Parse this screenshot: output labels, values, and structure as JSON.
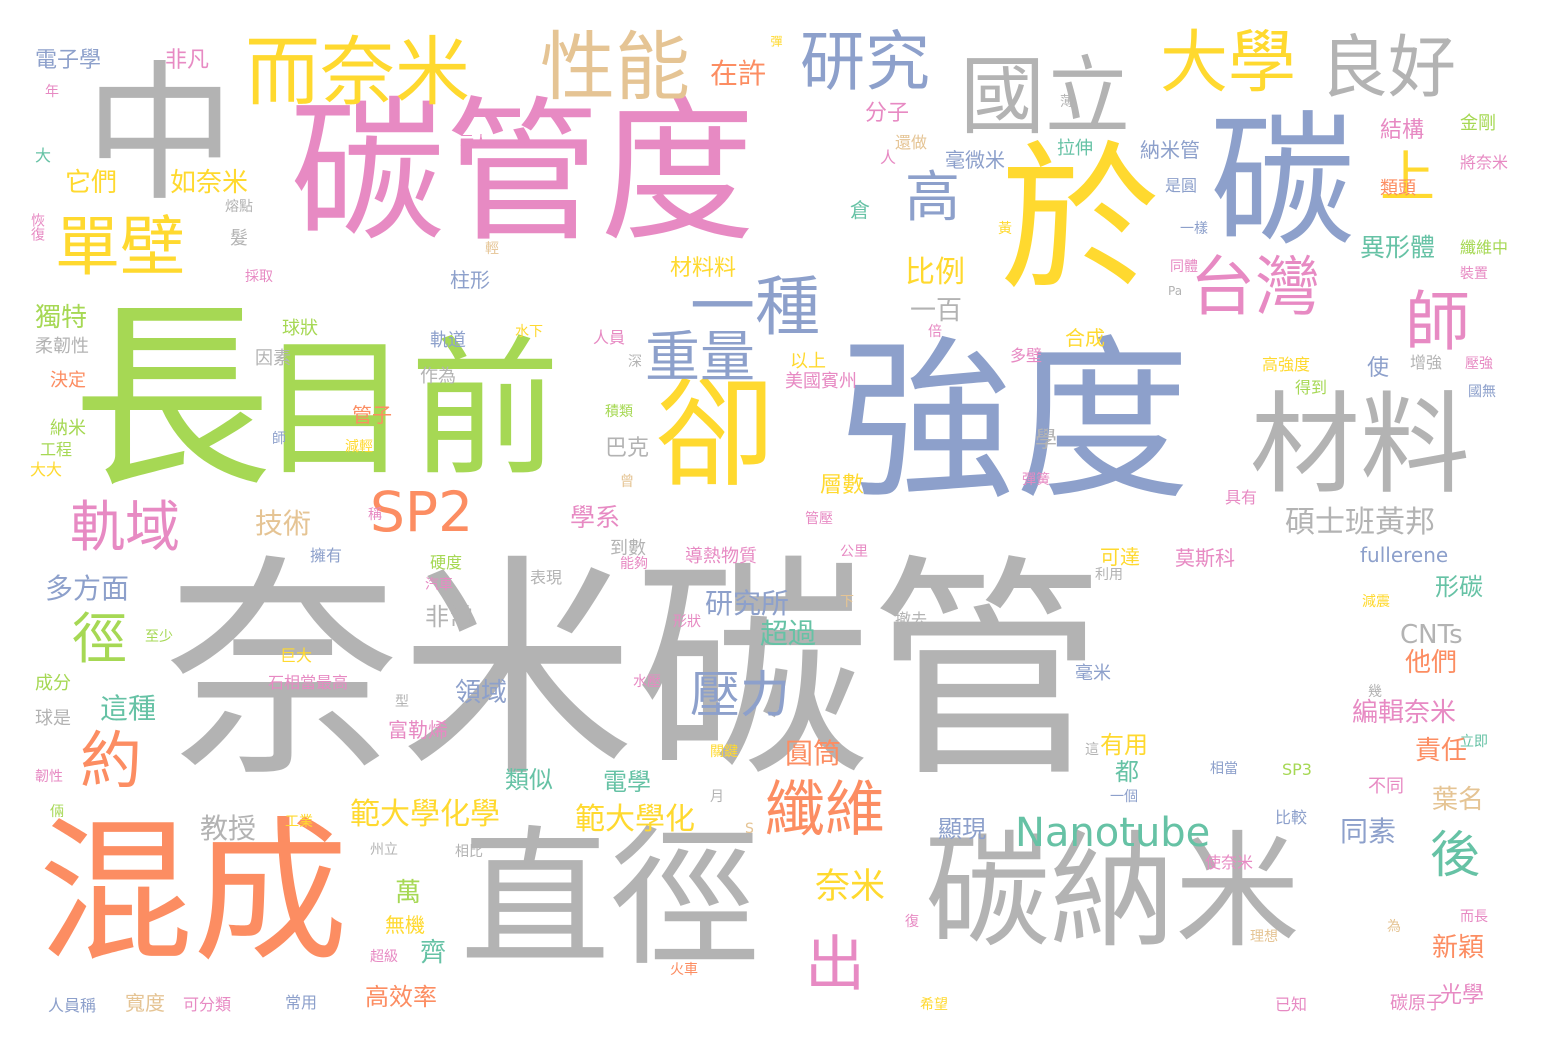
{
  "colors": {
    "gray": "#b3b3b3",
    "green": "#a6d854",
    "pink": "#e78ac3",
    "blue": "#8da0cb",
    "yellow": "#ffd92f",
    "orange": "#fc8d62",
    "teal": "#66c2a5",
    "tan": "#e5c494"
  },
  "words": [
    {
      "text": "奈米碳管",
      "color": "gray"
    },
    {
      "text": "強度",
      "color": "blue"
    },
    {
      "text": "長",
      "color": "green"
    },
    {
      "text": "目前",
      "color": "green"
    },
    {
      "text": "碳管度",
      "color": "pink"
    },
    {
      "text": "於",
      "color": "yellow"
    },
    {
      "text": "碳",
      "color": "blue"
    },
    {
      "text": "中",
      "color": "gray"
    },
    {
      "text": "直徑",
      "color": "gray"
    },
    {
      "text": "碳納米",
      "color": "gray"
    },
    {
      "text": "混成",
      "color": "orange"
    },
    {
      "text": "卻",
      "color": "yellow"
    },
    {
      "text": "材料",
      "color": "gray"
    },
    {
      "text": "國立",
      "color": "gray"
    },
    {
      "text": "而奈米",
      "color": "yellow"
    },
    {
      "text": "性能",
      "color": "tan"
    },
    {
      "text": "大學",
      "color": "yellow"
    },
    {
      "text": "良好",
      "color": "gray"
    },
    {
      "text": "研究",
      "color": "blue"
    },
    {
      "text": "單壁",
      "color": "yellow"
    },
    {
      "text": "一種",
      "color": "blue"
    },
    {
      "text": "台灣",
      "color": "pink"
    },
    {
      "text": "師",
      "color": "pink"
    },
    {
      "text": "高",
      "color": "blue"
    },
    {
      "text": "上",
      "color": "yellow"
    },
    {
      "text": "重量",
      "color": "blue"
    },
    {
      "text": "SP2",
      "color": "orange"
    },
    {
      "text": "軌域",
      "color": "pink"
    },
    {
      "text": "徑",
      "color": "green"
    },
    {
      "text": "約",
      "color": "orange"
    },
    {
      "text": "纖維",
      "color": "orange"
    },
    {
      "text": "出",
      "color": "pink"
    },
    {
      "text": "壓力",
      "color": "blue"
    },
    {
      "text": "Nanotube",
      "color": "teal"
    },
    {
      "text": "後",
      "color": "teal"
    },
    {
      "text": "碩士班黃邦",
      "color": "gray"
    },
    {
      "text": "範大學化學",
      "color": "yellow"
    },
    {
      "text": "範大學化",
      "color": "yellow"
    },
    {
      "text": "奈米",
      "color": "yellow"
    },
    {
      "text": "研究所",
      "color": "blue"
    },
    {
      "text": "技術",
      "color": "tan"
    },
    {
      "text": "學系",
      "color": "pink"
    },
    {
      "text": "多方面",
      "color": "blue"
    },
    {
      "text": "教授",
      "color": "gray"
    },
    {
      "text": "異形體",
      "color": "teal"
    },
    {
      "text": "比例",
      "color": "yellow"
    },
    {
      "text": "分子",
      "color": "pink"
    },
    {
      "text": "在許",
      "color": "orange"
    },
    {
      "text": "電子學",
      "color": "blue"
    },
    {
      "text": "非凡",
      "color": "pink"
    },
    {
      "text": "它們",
      "color": "yellow"
    },
    {
      "text": "如奈米",
      "color": "yellow"
    },
    {
      "text": "獨特",
      "color": "green"
    },
    {
      "text": "材料料",
      "color": "yellow"
    },
    {
      "text": "一百",
      "color": "gray"
    },
    {
      "text": "超過",
      "color": "teal"
    },
    {
      "text": "非常",
      "color": "gray"
    },
    {
      "text": "領域",
      "color": "blue"
    },
    {
      "text": "圓筒",
      "color": "orange"
    },
    {
      "text": "有用",
      "color": "yellow"
    },
    {
      "text": "都",
      "color": "teal"
    },
    {
      "text": "這種",
      "color": "teal"
    },
    {
      "text": "類似",
      "color": "teal"
    },
    {
      "text": "電學",
      "color": "teal"
    },
    {
      "text": "顯現",
      "color": "blue"
    },
    {
      "text": "同素",
      "color": "blue"
    },
    {
      "text": "責任",
      "color": "orange"
    },
    {
      "text": "葉名",
      "color": "tan"
    },
    {
      "text": "編輯奈米",
      "color": "pink"
    },
    {
      "text": "他們",
      "color": "orange"
    },
    {
      "text": "CNTs",
      "color": "gray"
    },
    {
      "text": "形碳",
      "color": "teal"
    },
    {
      "text": "fullerene",
      "color": "blue"
    },
    {
      "text": "新穎",
      "color": "orange"
    },
    {
      "text": "光學",
      "color": "pink"
    },
    {
      "text": "萬",
      "color": "green"
    },
    {
      "text": "齊",
      "color": "teal"
    },
    {
      "text": "高效率",
      "color": "orange"
    },
    {
      "text": "無機",
      "color": "yellow"
    },
    {
      "text": "富勒烯",
      "color": "pink"
    },
    {
      "text": "層數",
      "color": "yellow"
    },
    {
      "text": "巴克",
      "color": "gray"
    },
    {
      "text": "學",
      "color": "gray"
    },
    {
      "text": "使",
      "color": "blue"
    },
    {
      "text": "結構",
      "color": "pink"
    },
    {
      "text": "毫微米",
      "color": "blue"
    },
    {
      "text": "拉伸",
      "color": "teal"
    },
    {
      "text": "納米管",
      "color": "blue"
    },
    {
      "text": "倉",
      "color": "teal"
    },
    {
      "text": "柱形",
      "color": "blue"
    },
    {
      "text": "球狀",
      "color": "green"
    },
    {
      "text": "管子",
      "color": "orange"
    },
    {
      "text": "到數",
      "color": "gray"
    },
    {
      "text": "導熱物質",
      "color": "pink"
    },
    {
      "text": "可達",
      "color": "yellow"
    },
    {
      "text": "莫斯科",
      "color": "pink"
    },
    {
      "text": "毫米",
      "color": "blue"
    },
    {
      "text": "合成",
      "color": "yellow"
    },
    {
      "text": "以上",
      "color": "yellow"
    },
    {
      "text": "美國賓州",
      "color": "pink"
    },
    {
      "text": "類頭",
      "color": "orange"
    },
    {
      "text": "金剛",
      "color": "green"
    },
    {
      "text": "將奈米",
      "color": "pink"
    },
    {
      "text": "纖維中",
      "color": "green"
    },
    {
      "text": "球是",
      "color": "gray"
    },
    {
      "text": "成分",
      "color": "green"
    },
    {
      "text": "決定",
      "color": "orange"
    },
    {
      "text": "納米",
      "color": "green"
    },
    {
      "text": "工程",
      "color": "green"
    },
    {
      "text": "大大",
      "color": "yellow"
    },
    {
      "text": "柔韌性",
      "color": "gray"
    },
    {
      "text": "因素",
      "color": "gray"
    },
    {
      "text": "作為",
      "color": "gray"
    },
    {
      "text": "軌道",
      "color": "blue"
    },
    {
      "text": "人員",
      "color": "pink"
    },
    {
      "text": "多壁",
      "color": "pink"
    },
    {
      "text": "高強度",
      "color": "yellow"
    },
    {
      "text": "得到",
      "color": "green"
    },
    {
      "text": "增強",
      "color": "gray"
    },
    {
      "text": "壓強",
      "color": "pink"
    },
    {
      "text": "具有",
      "color": "pink"
    },
    {
      "text": "擁有",
      "color": "blue"
    },
    {
      "text": "硬度",
      "color": "green"
    },
    {
      "text": "能夠",
      "color": "pink"
    },
    {
      "text": "汽車",
      "color": "pink"
    },
    {
      "text": "表現",
      "color": "gray"
    },
    {
      "text": "公里",
      "color": "pink"
    },
    {
      "text": "利用",
      "color": "gray"
    },
    {
      "text": "減震",
      "color": "yellow"
    },
    {
      "text": "撤去",
      "color": "gray"
    },
    {
      "text": "巨大",
      "color": "yellow"
    },
    {
      "text": "至少",
      "color": "green"
    },
    {
      "text": "石相當最高",
      "color": "pink"
    },
    {
      "text": "水壓",
      "color": "pink"
    },
    {
      "text": "關鍵",
      "color": "yellow"
    },
    {
      "text": "立即",
      "color": "teal"
    },
    {
      "text": "相當",
      "color": "blue"
    },
    {
      "text": "SP3",
      "color": "green"
    },
    {
      "text": "不同",
      "color": "pink"
    },
    {
      "text": "一個",
      "color": "blue"
    },
    {
      "text": "比較",
      "color": "blue"
    },
    {
      "text": "工業",
      "color": "yellow"
    },
    {
      "text": "州立",
      "color": "gray"
    },
    {
      "text": "相比",
      "color": "gray"
    },
    {
      "text": "使奈米",
      "color": "pink"
    },
    {
      "text": "而長",
      "color": "pink"
    },
    {
      "text": "理想",
      "color": "tan"
    },
    {
      "text": "火車",
      "color": "orange"
    },
    {
      "text": "人員稱",
      "color": "blue"
    },
    {
      "text": "寬度",
      "color": "tan"
    },
    {
      "text": "可分類",
      "color": "pink"
    },
    {
      "text": "常用",
      "color": "blue"
    },
    {
      "text": "希望",
      "color": "yellow"
    },
    {
      "text": "已知",
      "color": "pink"
    },
    {
      "text": "碳原子",
      "color": "pink"
    },
    {
      "text": "超級",
      "color": "pink"
    },
    {
      "text": "形狀",
      "color": "pink"
    },
    {
      "text": "採取",
      "color": "pink"
    },
    {
      "text": "髮",
      "color": "gray"
    },
    {
      "text": "熔點",
      "color": "gray"
    },
    {
      "text": "一樣",
      "color": "blue"
    },
    {
      "text": "是圓",
      "color": "blue"
    },
    {
      "text": "同體",
      "color": "pink"
    },
    {
      "text": "裝置",
      "color": "pink"
    },
    {
      "text": "人",
      "color": "pink"
    },
    {
      "text": "還做",
      "color": "tan"
    },
    {
      "text": "示人",
      "color": "pink"
    },
    {
      "text": "大",
      "color": "teal"
    },
    {
      "text": "年",
      "color": "pink"
    },
    {
      "text": "恢復",
      "color": "pink"
    },
    {
      "text": "彈",
      "color": "yellow"
    },
    {
      "text": "薄",
      "color": "gray"
    },
    {
      "text": "輕",
      "color": "tan"
    },
    {
      "text": "黃",
      "color": "yellow"
    },
    {
      "text": "倍",
      "color": "pink"
    },
    {
      "text": "水下",
      "color": "yellow"
    },
    {
      "text": "深",
      "color": "gray"
    },
    {
      "text": "積類",
      "color": "green"
    },
    {
      "text": "減輕",
      "color": "yellow"
    },
    {
      "text": "師",
      "color": "blue"
    },
    {
      "text": "稱",
      "color": "pink"
    },
    {
      "text": "曾",
      "color": "tan"
    },
    {
      "text": "彈簧",
      "color": "pink"
    },
    {
      "text": "管壓",
      "color": "pink"
    },
    {
      "text": "下",
      "color": "tan"
    },
    {
      "text": "型",
      "color": "gray"
    },
    {
      "text": "月",
      "color": "gray"
    },
    {
      "text": "S",
      "color": "tan"
    },
    {
      "text": "這",
      "color": "gray"
    },
    {
      "text": "幾",
      "color": "gray"
    },
    {
      "text": "Pa",
      "color": "gray"
    },
    {
      "text": "倆",
      "color": "green"
    },
    {
      "text": "韌性",
      "color": "pink"
    },
    {
      "text": "國無",
      "color": "blue"
    },
    {
      "text": "復",
      "color": "pink"
    },
    {
      "text": "為",
      "color": "tan"
    }
  ]
}
